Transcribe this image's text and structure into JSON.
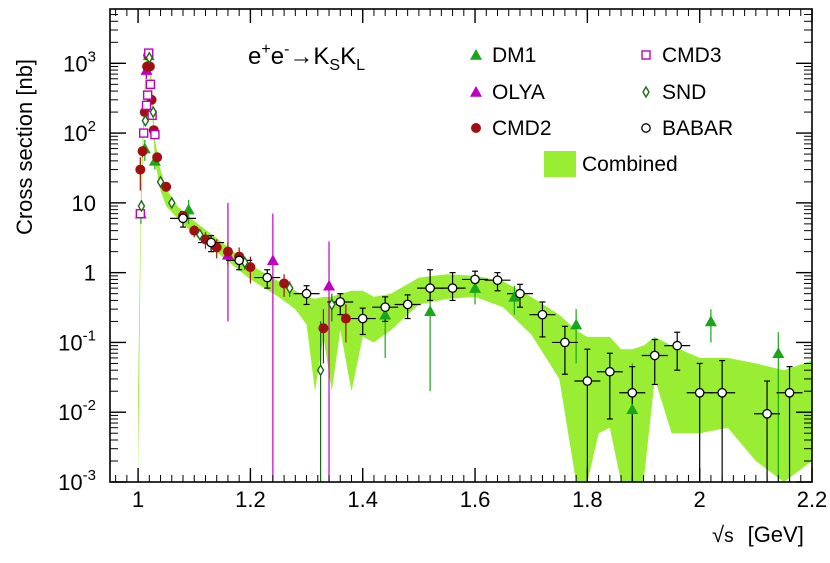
{
  "chart_data": {
    "type": "scatter",
    "title": {
      "base": "e",
      "sup1": "+",
      "mid": "e",
      "sup2": "-",
      "arrow": "→",
      "k1": "K",
      "sub1": "S",
      "k2": "K",
      "sub2": "L"
    },
    "xlabel": {
      "sqrt": "√",
      "s": "s",
      "unit": "[GeV]"
    },
    "ylabel": "Cross section   [nb]",
    "xlim": [
      0.95,
      2.2
    ],
    "ylim": [
      0.001,
      6000
    ],
    "yscale": "log",
    "x_ticks": [
      {
        "v": 1.0,
        "label": "1"
      },
      {
        "v": 1.2,
        "label": "1.2"
      },
      {
        "v": 1.4,
        "label": "1.4"
      },
      {
        "v": 1.6,
        "label": "1.6"
      },
      {
        "v": 1.8,
        "label": "1.8"
      },
      {
        "v": 2.0,
        "label": "2"
      },
      {
        "v": 2.2,
        "label": "2.2"
      }
    ],
    "y_ticks": [
      {
        "v": 0.001,
        "base": "10",
        "exp": "-3"
      },
      {
        "v": 0.01,
        "base": "10",
        "exp": "-2"
      },
      {
        "v": 0.1,
        "base": "10",
        "exp": "-1"
      },
      {
        "v": 1,
        "base": "1",
        "exp": ""
      },
      {
        "v": 10,
        "base": "10",
        "exp": ""
      },
      {
        "v": 100,
        "base": "10",
        "exp": "2"
      },
      {
        "v": 1000,
        "base": "10",
        "exp": "3"
      }
    ],
    "legend": [
      {
        "name": "DM1",
        "marker": "triangle",
        "color": "#1aa61a"
      },
      {
        "name": "OLYA",
        "marker": "triangle",
        "color": "#c000c0"
      },
      {
        "name": "CMD2",
        "marker": "circle-filled",
        "color": "#a01010"
      },
      {
        "name": "CMD3",
        "marker": "square-open",
        "color": "#c000c0"
      },
      {
        "name": "SND",
        "marker": "diamond-open",
        "color": "#1a6a1a"
      },
      {
        "name": "BABAR",
        "marker": "circle-open",
        "color": "#000000"
      },
      {
        "name": "Combined",
        "marker": "band",
        "color": "#99ee33"
      }
    ],
    "combined_band": {
      "x": [
        1.0,
        1.005,
        1.01,
        1.015,
        1.02,
        1.025,
        1.03,
        1.04,
        1.05,
        1.07,
        1.1,
        1.15,
        1.2,
        1.25,
        1.28,
        1.3,
        1.315,
        1.33,
        1.345,
        1.36,
        1.38,
        1.4,
        1.42,
        1.45,
        1.5,
        1.55,
        1.6,
        1.65,
        1.7,
        1.75,
        1.78,
        1.8,
        1.82,
        1.84,
        1.86,
        1.88,
        1.9,
        1.92,
        1.95,
        2.0,
        2.05,
        2.1,
        2.15,
        2.2
      ],
      "lo": [
        0.001,
        5,
        100,
        900,
        1000,
        200,
        40,
        15,
        9,
        6,
        3.5,
        1.7,
        0.8,
        0.45,
        0.3,
        0.18,
        0.02,
        0.12,
        0.02,
        0.15,
        0.02,
        0.12,
        0.1,
        0.15,
        0.35,
        0.42,
        0.45,
        0.32,
        0.13,
        0.03,
        0.001,
        0.001,
        0.005,
        0.006,
        0.001,
        0.001,
        0.001,
        0.03,
        0.005,
        0.005,
        0.006,
        0.002,
        0.001,
        0.002
      ],
      "hi": [
        0.02,
        14,
        250,
        1600,
        1500,
        500,
        80,
        30,
        16,
        9,
        5.5,
        2.7,
        1.3,
        0.75,
        0.55,
        0.45,
        0.42,
        0.45,
        0.45,
        0.5,
        0.55,
        0.55,
        0.45,
        0.5,
        0.85,
        0.95,
        0.9,
        0.75,
        0.45,
        0.25,
        0.15,
        0.12,
        0.12,
        0.12,
        0.08,
        0.08,
        0.09,
        0.12,
        0.09,
        0.06,
        0.06,
        0.05,
        0.04,
        0.055
      ]
    },
    "series": [
      {
        "name": "DM1",
        "points": [
          {
            "x": 1.005,
            "y": 7,
            "lo": 5,
            "hi": 9
          },
          {
            "x": 1.012,
            "y": 60,
            "lo": 40,
            "hi": 80
          },
          {
            "x": 1.019,
            "y": 1300,
            "lo": 1100,
            "hi": 1500
          },
          {
            "x": 1.03,
            "y": 40,
            "lo": 30,
            "hi": 50
          },
          {
            "x": 1.09,
            "y": 8,
            "lo": 5,
            "hi": 11
          },
          {
            "x": 1.44,
            "y": 0.25,
            "lo": 0.06,
            "hi": 0.45
          },
          {
            "x": 1.52,
            "y": 0.28,
            "lo": 0.02,
            "hi": 0.6
          },
          {
            "x": 1.6,
            "y": 0.6,
            "lo": 0.35,
            "hi": 0.85
          },
          {
            "x": 1.67,
            "y": 0.45,
            "lo": 0.25,
            "hi": 0.65
          },
          {
            "x": 1.78,
            "y": 0.18,
            "lo": 0.05,
            "hi": 0.3
          },
          {
            "x": 1.88,
            "y": 0.011,
            "lo": 0.001,
            "hi": 0.05
          },
          {
            "x": 2.02,
            "y": 0.2,
            "lo": 0.1,
            "hi": 0.3
          },
          {
            "x": 2.14,
            "y": 0.07,
            "lo": 0.001,
            "hi": 0.14
          }
        ]
      },
      {
        "name": "OLYA",
        "points": [
          {
            "x": 1.015,
            "y": 800,
            "lo": 600,
            "hi": 1000
          },
          {
            "x": 1.16,
            "y": 1.8,
            "lo": 0.2,
            "hi": 10
          },
          {
            "x": 1.24,
            "y": 1.5,
            "lo": 0.001,
            "hi": 7
          },
          {
            "x": 1.34,
            "y": 0.65,
            "lo": 0.001,
            "hi": 2.8
          }
        ]
      },
      {
        "name": "CMD2",
        "points": [
          {
            "x": 1.004,
            "y": 30,
            "lo": 15,
            "hi": 45
          },
          {
            "x": 1.008,
            "y": 55,
            "lo": 45,
            "hi": 65
          },
          {
            "x": 1.012,
            "y": 200,
            "lo": 180,
            "hi": 220
          },
          {
            "x": 1.016,
            "y": 900,
            "lo": 850,
            "hi": 950
          },
          {
            "x": 1.018,
            "y": 1300,
            "lo": 1250,
            "hi": 1350
          },
          {
            "x": 1.021,
            "y": 900,
            "lo": 850,
            "hi": 950
          },
          {
            "x": 1.024,
            "y": 300,
            "lo": 280,
            "hi": 320
          },
          {
            "x": 1.028,
            "y": 110,
            "lo": 100,
            "hi": 120
          },
          {
            "x": 1.034,
            "y": 45,
            "lo": 42,
            "hi": 48
          },
          {
            "x": 1.05,
            "y": 17,
            "lo": 15,
            "hi": 19
          },
          {
            "x": 1.08,
            "y": 6.5,
            "lo": 5.5,
            "hi": 7.5
          },
          {
            "x": 1.1,
            "y": 4.0,
            "lo": 3.2,
            "hi": 4.8
          },
          {
            "x": 1.12,
            "y": 3.0,
            "lo": 2.2,
            "hi": 3.8
          },
          {
            "x": 1.14,
            "y": 2.3,
            "lo": 1.6,
            "hi": 3.0
          },
          {
            "x": 1.16,
            "y": 2.0,
            "lo": 1.3,
            "hi": 2.7
          },
          {
            "x": 1.18,
            "y": 1.7,
            "lo": 1.1,
            "hi": 2.3
          },
          {
            "x": 1.2,
            "y": 1.2,
            "lo": 0.7,
            "hi": 1.7
          },
          {
            "x": 1.26,
            "y": 0.7,
            "lo": 0.45,
            "hi": 0.95
          },
          {
            "x": 1.33,
            "y": 0.16,
            "lo": 0.05,
            "hi": 0.3
          },
          {
            "x": 1.37,
            "y": 0.22,
            "lo": 0.1,
            "hi": 0.35
          }
        ]
      },
      {
        "name": "CMD3",
        "points": [
          {
            "x": 1.004,
            "y": 7,
            "lo": 6,
            "hi": 8
          },
          {
            "x": 1.01,
            "y": 100,
            "lo": 95,
            "hi": 105
          },
          {
            "x": 1.015,
            "y": 250,
            "lo": 240,
            "hi": 260
          },
          {
            "x": 1.017,
            "y": 350,
            "lo": 340,
            "hi": 360
          },
          {
            "x": 1.019,
            "y": 1400,
            "lo": 1380,
            "hi": 1420
          },
          {
            "x": 1.022,
            "y": 500,
            "lo": 490,
            "hi": 510
          },
          {
            "x": 1.025,
            "y": 180,
            "lo": 175,
            "hi": 185
          },
          {
            "x": 1.03,
            "y": 95,
            "lo": 90,
            "hi": 100
          }
        ]
      },
      {
        "name": "SND",
        "points": [
          {
            "x": 1.006,
            "y": 9,
            "lo": 7,
            "hi": 11
          },
          {
            "x": 1.013,
            "y": 150,
            "lo": 130,
            "hi": 170
          },
          {
            "x": 1.02,
            "y": 1200,
            "lo": 1100,
            "hi": 1300
          },
          {
            "x": 1.027,
            "y": 200,
            "lo": 180,
            "hi": 220
          },
          {
            "x": 1.04,
            "y": 20,
            "lo": 18,
            "hi": 22
          },
          {
            "x": 1.06,
            "y": 10,
            "lo": 9,
            "hi": 11
          },
          {
            "x": 1.11,
            "y": 3.5,
            "lo": 3.0,
            "hi": 4.0
          },
          {
            "x": 1.19,
            "y": 1.4,
            "lo": 1.1,
            "hi": 1.7
          },
          {
            "x": 1.27,
            "y": 0.6,
            "lo": 0.45,
            "hi": 0.75
          },
          {
            "x": 1.325,
            "y": 0.04,
            "lo": 0.001,
            "hi": 0.2
          },
          {
            "x": 1.345,
            "y": 0.35,
            "lo": 0.2,
            "hi": 0.5
          }
        ]
      },
      {
        "name": "BABAR",
        "points": [
          {
            "x": 1.08,
            "y": 6,
            "lo": 4.5,
            "hi": 7.5
          },
          {
            "x": 1.13,
            "y": 2.7,
            "lo": 2.0,
            "hi": 3.4
          },
          {
            "x": 1.18,
            "y": 1.5,
            "lo": 1.1,
            "hi": 1.9
          },
          {
            "x": 1.23,
            "y": 0.85,
            "lo": 0.6,
            "hi": 1.1
          },
          {
            "x": 1.3,
            "y": 0.5,
            "lo": 0.35,
            "hi": 0.65
          },
          {
            "x": 1.36,
            "y": 0.38,
            "lo": 0.25,
            "hi": 0.5
          },
          {
            "x": 1.4,
            "y": 0.22,
            "lo": 0.13,
            "hi": 0.31
          },
          {
            "x": 1.44,
            "y": 0.32,
            "lo": 0.2,
            "hi": 0.45
          },
          {
            "x": 1.48,
            "y": 0.35,
            "lo": 0.22,
            "hi": 0.48
          },
          {
            "x": 1.52,
            "y": 0.6,
            "lo": 0.4,
            "hi": 1.1
          },
          {
            "x": 1.56,
            "y": 0.6,
            "lo": 0.4,
            "hi": 1.0
          },
          {
            "x": 1.6,
            "y": 0.8,
            "lo": 0.55,
            "hi": 1.05
          },
          {
            "x": 1.64,
            "y": 0.78,
            "lo": 0.55,
            "hi": 1.0
          },
          {
            "x": 1.68,
            "y": 0.5,
            "lo": 0.32,
            "hi": 0.68
          },
          {
            "x": 1.72,
            "y": 0.25,
            "lo": 0.12,
            "hi": 0.38
          },
          {
            "x": 1.76,
            "y": 0.1,
            "lo": 0.035,
            "hi": 0.17
          },
          {
            "x": 1.8,
            "y": 0.028,
            "lo": 0.001,
            "hi": 0.08
          },
          {
            "x": 1.84,
            "y": 0.038,
            "lo": 0.008,
            "hi": 0.07
          },
          {
            "x": 1.88,
            "y": 0.019,
            "lo": 0.001,
            "hi": 0.045
          },
          {
            "x": 1.92,
            "y": 0.065,
            "lo": 0.025,
            "hi": 0.11
          },
          {
            "x": 1.96,
            "y": 0.09,
            "lo": 0.04,
            "hi": 0.14
          },
          {
            "x": 2.0,
            "y": 0.019,
            "lo": 0.001,
            "hi": 0.05
          },
          {
            "x": 2.04,
            "y": 0.019,
            "lo": 0.001,
            "hi": 0.055
          },
          {
            "x": 2.12,
            "y": 0.0095,
            "lo": 0.001,
            "hi": 0.028
          },
          {
            "x": 2.16,
            "y": 0.019,
            "lo": 0.001,
            "hi": 0.045
          }
        ]
      }
    ]
  }
}
